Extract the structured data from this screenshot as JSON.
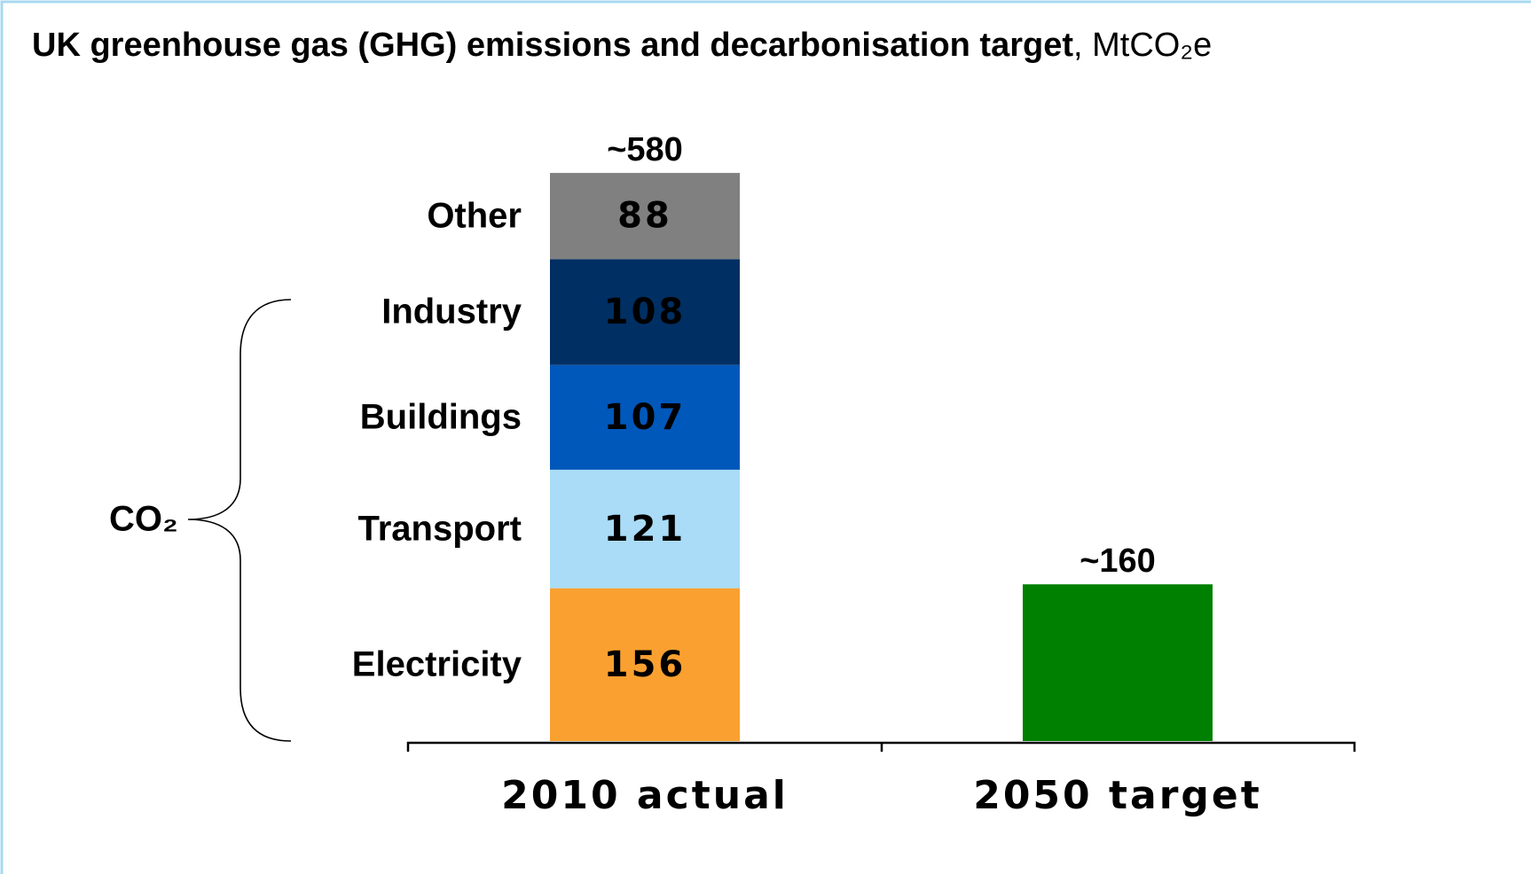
{
  "chart_data": {
    "type": "stacked_bar",
    "title": "UK greenhouse gas (GHG) emissions and decarbonisation target",
    "unit": ", MtCO₂e",
    "categories": [
      "2010 actual",
      "2050 target"
    ],
    "series": [
      {
        "name": "Electricity",
        "color": "#f9a030",
        "values": [
          156,
          null
        ]
      },
      {
        "name": "Transport",
        "color": "#aadcf7",
        "values": [
          121,
          null
        ]
      },
      {
        "name": "Buildings",
        "color": "#0058bb",
        "values": [
          107,
          null
        ]
      },
      {
        "name": "Industry",
        "color": "#002f63",
        "values": [
          108,
          null
        ]
      },
      {
        "name": "Other",
        "color": "#808080",
        "values": [
          88,
          null
        ]
      },
      {
        "color": "#008000",
        "values": [
          null,
          160
        ]
      }
    ],
    "total_labels": [
      "~580",
      "~160"
    ],
    "annotation": "CO₂"
  }
}
